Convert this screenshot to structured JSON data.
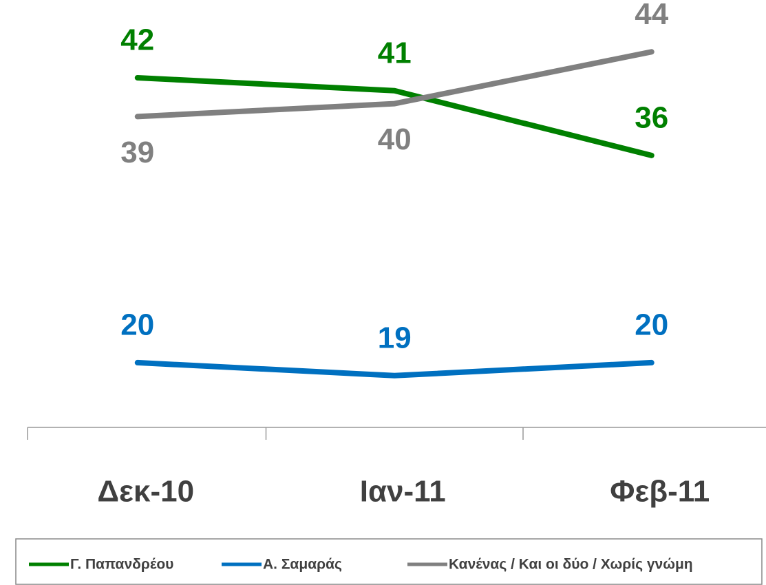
{
  "chart_data": {
    "type": "line",
    "categories": [
      "Δεκ-10",
      "Ιαν-11",
      "Φεβ-11"
    ],
    "series": [
      {
        "name": "Γ. Παπανδρέου",
        "color": "#008000",
        "values": [
          42,
          41,
          36
        ]
      },
      {
        "name": "Α. Σαμαράς",
        "color": "#0070c0",
        "values": [
          20,
          19,
          20
        ]
      },
      {
        "name": "Κανένας / Και οι δύο / Χωρίς γνώμη",
        "color": "#808080",
        "values": [
          39,
          40,
          44
        ]
      }
    ],
    "ylim": [
      15,
      45
    ],
    "legend": "bottom"
  }
}
